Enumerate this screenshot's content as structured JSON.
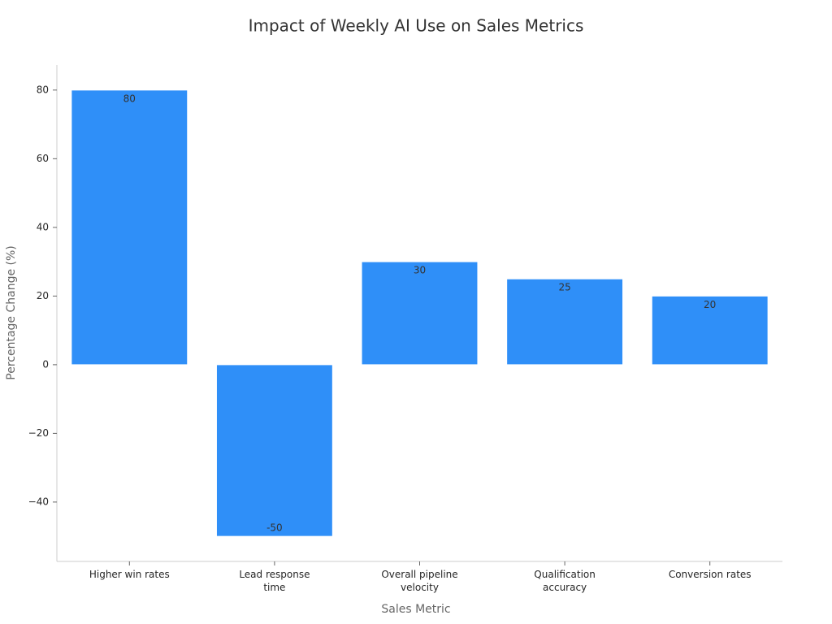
{
  "chart_data": {
    "type": "bar",
    "title": "Impact of Weekly AI Use on Sales Metrics",
    "xlabel": "Sales Metric",
    "ylabel": "Percentage Change (%)",
    "categories": [
      "Higher win rates",
      "Lead response time",
      "Overall pipeline velocity",
      "Qualification accuracy",
      "Conversion rates"
    ],
    "values": [
      80,
      -50,
      30,
      25,
      20
    ],
    "color": "#2f8ff8",
    "ylim": [
      -57.3,
      87.3
    ],
    "yticks": [
      {
        "value": -40,
        "label": "−40"
      },
      {
        "value": -20,
        "label": "−20"
      },
      0,
      20,
      40,
      60,
      80
    ],
    "grid": false
  }
}
